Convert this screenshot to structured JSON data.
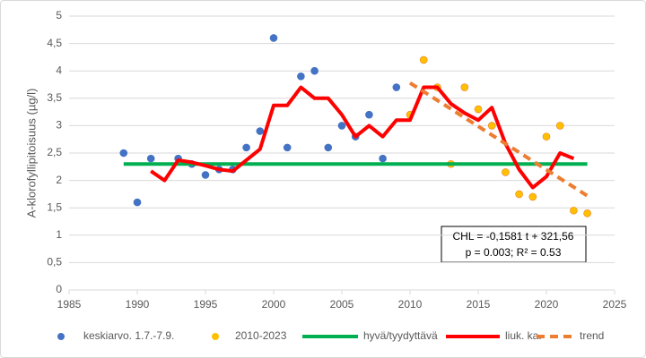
{
  "chart_data": {
    "type": "line",
    "y_label": "A-klorofyllipitoisuus (µg/l)",
    "xlim": [
      1985,
      2025
    ],
    "xticks": [
      1985,
      1990,
      1995,
      2000,
      2005,
      2010,
      2015,
      2020,
      2025
    ],
    "ylim": [
      0,
      5
    ],
    "yticks": [
      0,
      {
        "value": 0.5,
        "label": "0,5"
      },
      1,
      {
        "value": 1.5,
        "label": "1,5"
      },
      2,
      {
        "value": 2.5,
        "label": "2,5"
      },
      3,
      {
        "value": 3.5,
        "label": "3,5"
      },
      4,
      {
        "value": 4.5,
        "label": "4,5"
      },
      5
    ],
    "grid": true,
    "annotations": [
      "CHL = -0,1581 t + 321,56",
      "p = 0.003; R² = 0.53"
    ],
    "series": [
      {
        "name": "keskiarvo. 1.7.-7.9.",
        "type": "scatter",
        "color": "#4472c4",
        "x": [
          1989,
          1990,
          1991,
          1993,
          1994,
          1995,
          1996,
          1997,
          1998,
          1999,
          2000,
          2001,
          2002,
          2003,
          2004,
          2005,
          2006,
          2007,
          2008,
          2009
        ],
        "values": [
          2.5,
          1.6,
          2.4,
          2.4,
          2.3,
          2.1,
          2.2,
          2.2,
          2.6,
          2.9,
          4.6,
          2.6,
          3.9,
          4.0,
          2.6,
          3.0,
          2.8,
          3.2,
          2.4,
          3.7
        ]
      },
      {
        "name": "2010-2023",
        "type": "scatter",
        "color": "#ffc000",
        "x": [
          2010,
          2011,
          2012,
          2013,
          2014,
          2015,
          2016,
          2017,
          2018,
          2019,
          2020,
          2021,
          2022,
          2023
        ],
        "values": [
          3.2,
          4.2,
          3.7,
          2.3,
          3.7,
          3.3,
          3.0,
          2.15,
          1.75,
          1.7,
          2.8,
          3.0,
          1.45,
          1.4
        ]
      },
      {
        "name": "hyvä/tyydyttävä",
        "type": "line",
        "color": "#00b050",
        "x": [
          1989,
          2023
        ],
        "values": [
          2.3,
          2.3
        ]
      },
      {
        "name": "liuk. ka.",
        "type": "line",
        "color": "#ff0000",
        "x": [
          1991,
          1992,
          1993,
          1994,
          1995,
          1996,
          1997,
          1998,
          1999,
          2000,
          2001,
          2002,
          2003,
          2004,
          2005,
          2006,
          2007,
          2008,
          2009,
          2010,
          2011,
          2012,
          2013,
          2014,
          2015,
          2016,
          2017,
          2018,
          2019,
          2020,
          2021,
          2022
        ],
        "values": [
          2.17,
          2.0,
          2.37,
          2.33,
          2.27,
          2.2,
          2.17,
          2.37,
          2.57,
          3.37,
          3.37,
          3.7,
          3.5,
          3.5,
          3.2,
          2.8,
          3.0,
          2.8,
          3.1,
          3.1,
          3.7,
          3.7,
          3.4,
          3.23,
          3.1,
          3.33,
          2.67,
          2.2,
          1.87,
          2.07,
          2.5,
          2.4
        ]
      },
      {
        "name": "trend",
        "type": "dashed",
        "color": "#ed7d31",
        "x": [
          2010,
          2023
        ],
        "values": [
          3.78,
          1.72
        ]
      }
    ]
  }
}
